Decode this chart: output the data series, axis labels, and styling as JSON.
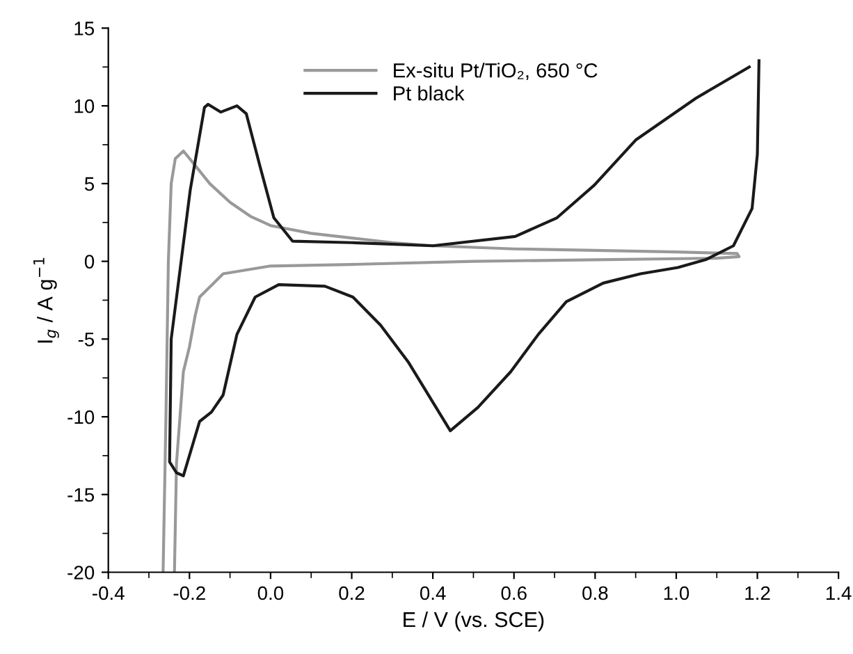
{
  "chart_data": {
    "type": "line",
    "xlabel": "E / V (vs. SCE)",
    "ylabel": "I$_{g}$ / A g$^{−1}$",
    "xlim": [
      -0.4,
      1.4
    ],
    "xticks": [
      -0.4,
      -0.2,
      {
        "value": 0,
        "label": "0.0"
      },
      0.2,
      0.4,
      0.6,
      0.8,
      {
        "value": 1,
        "label": "1.0"
      },
      1.2,
      1.4
    ],
    "ylim": [
      -20,
      15
    ],
    "yticks": [
      -20,
      -15,
      -10,
      -5,
      0,
      5,
      10,
      15
    ],
    "grid": false,
    "legend": "top",
    "marker": "none",
    "line_style": "solid",
    "series": [
      {
        "name": "Ex-situ Pt/TiO₂, 650 °C",
        "color": "#999999",
        "x": [
          -0.265,
          -0.258,
          -0.252,
          -0.245,
          -0.235,
          -0.215,
          -0.19,
          -0.15,
          -0.1,
          -0.05,
          0.0,
          0.1,
          0.2,
          0.3,
          0.4,
          0.6,
          0.8,
          1.0,
          1.15,
          1.155,
          1.1,
          0.8,
          0.5,
          0.2,
          0.0,
          -0.117,
          -0.175,
          -0.186,
          -0.2,
          -0.215,
          -0.232,
          -0.237
        ],
        "values": [
          -20,
          -10,
          0,
          5,
          6.6,
          7.1,
          6.3,
          5,
          3.8,
          2.9,
          2.3,
          1.8,
          1.5,
          1.2,
          1.0,
          0.8,
          0.7,
          0.6,
          0.5,
          0.3,
          0.2,
          0.1,
          0.0,
          -0.2,
          -0.3,
          -0.8,
          -2.3,
          -3.5,
          -5.5,
          -7.1,
          -13,
          -20
        ]
      },
      {
        "name": "Pt black",
        "color": "#1a1a1a",
        "x": [
          1.204,
          1.2,
          1.187,
          1.141,
          1.072,
          1.004,
          0.912,
          0.82,
          0.729,
          0.66,
          0.592,
          0.511,
          0.443,
          0.34,
          0.271,
          0.203,
          0.134,
          0.02,
          -0.038,
          -0.083,
          -0.117,
          -0.146,
          -0.175,
          -0.215,
          -0.232,
          -0.249,
          -0.245,
          -0.198,
          -0.163,
          -0.154,
          -0.123,
          -0.083,
          -0.06,
          -0.026,
          0.008,
          0.054,
          0.2,
          0.4,
          0.603,
          0.706,
          0.798,
          0.9,
          1.049,
          1.18
        ],
        "values": [
          12.9,
          6.9,
          3.4,
          1.0,
          0.1,
          -0.4,
          -0.8,
          -1.4,
          -2.6,
          -4.7,
          -7.1,
          -9.4,
          -10.9,
          -6.5,
          -4.1,
          -2.3,
          -1.6,
          -1.5,
          -2.3,
          -4.7,
          -8.6,
          -9.7,
          -10.3,
          -13.8,
          -13.6,
          -12.9,
          -5,
          4.6,
          9.9,
          10.1,
          9.6,
          10.0,
          9.5,
          6.1,
          2.8,
          1.3,
          1.2,
          1.0,
          1.6,
          2.8,
          4.9,
          7.8,
          10.5,
          12.5
        ]
      }
    ]
  }
}
